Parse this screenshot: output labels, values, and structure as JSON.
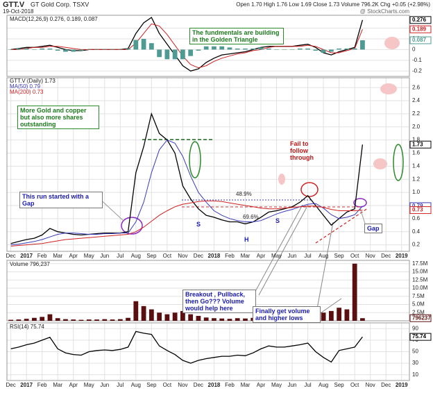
{
  "header": {
    "symbol": "GTT.V",
    "company": "GT Gold Corp. TSXV",
    "date": "19-Oct-2018",
    "quote": "Open 1.70 High 1.76 Low 1.69 Close 1.73 Volume 796.2K Chg +0.05 (+2.98%)",
    "credit": "@ StockCharts.com"
  },
  "chart_data": [
    {
      "type": "line",
      "legend": [
        "MACD(12,26,9) 0.276, 0.189, 0.087"
      ],
      "xlim": [
        -0.5,
        51
      ],
      "ylim": [
        -0.25,
        0.32
      ],
      "yticks": [
        -0.2,
        -0.1,
        0,
        0.1,
        0.2
      ],
      "grid": true,
      "annotations": [
        "The fundmentals are building in the Golden Triangle"
      ],
      "series": [
        {
          "name": "MACD",
          "color": "#000000",
          "values": [
            0.0,
            0.01,
            0.02,
            0.02,
            0.03,
            0.04,
            0.02,
            0.0,
            -0.01,
            -0.01,
            0.0,
            0.0,
            0.0,
            0.0,
            0.0,
            0.01,
            0.15,
            0.25,
            0.3,
            0.15,
            0.05,
            -0.05,
            -0.15,
            -0.2,
            -0.18,
            -0.12,
            -0.08,
            -0.05,
            -0.04,
            -0.03,
            -0.02,
            0.0,
            0.02,
            0.03,
            0.03,
            0.03,
            0.03,
            0.04,
            0.05,
            0.02,
            -0.03,
            -0.05,
            -0.02,
            0.0,
            0.02,
            0.276
          ]
        },
        {
          "name": "Signal",
          "color": "#d02020",
          "values": [
            0.0,
            0.0,
            0.01,
            0.02,
            0.02,
            0.03,
            0.03,
            0.02,
            0.01,
            0.0,
            0.0,
            0.0,
            0.0,
            0.0,
            0.0,
            0.0,
            0.06,
            0.15,
            0.24,
            0.22,
            0.14,
            0.04,
            -0.06,
            -0.14,
            -0.17,
            -0.15,
            -0.11,
            -0.08,
            -0.06,
            -0.04,
            -0.03,
            -0.01,
            0.0,
            0.02,
            0.03,
            0.03,
            0.03,
            0.03,
            0.04,
            0.03,
            0.0,
            -0.03,
            -0.03,
            -0.01,
            0.01,
            0.189
          ]
        },
        {
          "name": "Histogram",
          "type": "bar",
          "color": "#4f9a92",
          "values": [
            0,
            0.01,
            0.01,
            0,
            0.01,
            0.01,
            -0.01,
            -0.02,
            -0.02,
            -0.01,
            0,
            0,
            0,
            0,
            0,
            0.01,
            0.09,
            0.1,
            0.06,
            -0.07,
            -0.09,
            -0.09,
            -0.09,
            -0.06,
            -0.01,
            0.03,
            0.03,
            0.03,
            0.02,
            0.01,
            0.01,
            0.01,
            0.02,
            0.01,
            0,
            0,
            0,
            0.01,
            0.01,
            -0.01,
            -0.03,
            -0.02,
            0.01,
            0.01,
            0.01,
            0.087
          ]
        }
      ]
    },
    {
      "type": "line",
      "legend": [
        "GTT.V (Daily) 1.73",
        "MA(50) 0.79",
        "MA(200) 0.73"
      ],
      "xlim": [
        -0.5,
        51
      ],
      "ylim": [
        0.1,
        2.75
      ],
      "yticks": [
        0.2,
        0.4,
        0.6,
        0.8,
        {
          "value": 1,
          "label": "1.0"
        },
        1.2,
        1.4,
        1.6,
        1.8,
        {
          "value": 2,
          "label": "2.0"
        },
        2.2,
        2.4,
        2.6
      ],
      "xticks": [
        {
          "value": 0,
          "label": "Dec"
        },
        {
          "value": 2,
          "label": "2017"
        },
        {
          "value": 4,
          "label": "Feb"
        },
        {
          "value": 6,
          "label": "Mar"
        },
        {
          "value": 8,
          "label": "Apr"
        },
        {
          "value": 10,
          "label": "May"
        },
        {
          "value": 12,
          "label": "Jun"
        },
        {
          "value": 14,
          "label": "Jul"
        },
        {
          "value": 16,
          "label": "Aug"
        },
        {
          "value": 18,
          "label": "Sep"
        },
        {
          "value": 20,
          "label": "Oct"
        },
        {
          "value": 22,
          "label": "Nov"
        },
        {
          "value": 24,
          "label": "Dec"
        },
        {
          "value": 26,
          "label": "2018"
        },
        {
          "value": 28,
          "label": "Feb"
        },
        {
          "value": 30,
          "label": "Mar"
        },
        {
          "value": 32,
          "label": "Apr"
        },
        {
          "value": 34,
          "label": "May"
        },
        {
          "value": 36,
          "label": "Jun"
        },
        {
          "value": 38,
          "label": "Jul"
        },
        {
          "value": 40,
          "label": "Aug"
        },
        {
          "value": 42,
          "label": "Sep"
        },
        {
          "value": 44,
          "label": "Oct"
        },
        {
          "value": 46,
          "label": "Nov"
        },
        {
          "value": 48,
          "label": "Dec"
        },
        {
          "value": 50,
          "label": "2019"
        }
      ],
      "grid": true,
      "annotations": [
        "More Gold and copper but also more shares outstanding",
        "This run started with a Gap",
        "Fail to follow through",
        "Gap",
        "S",
        "H",
        "S",
        "48.9%",
        "69.6%"
      ],
      "series": [
        {
          "name": "GTT.V",
          "color": "#000000",
          "values": [
            0.22,
            0.25,
            0.28,
            0.3,
            0.35,
            0.45,
            0.4,
            0.38,
            0.36,
            0.35,
            0.36,
            0.37,
            0.38,
            0.38,
            0.38,
            0.4,
            1.3,
            1.7,
            2.2,
            1.9,
            1.8,
            1.6,
            1.1,
            0.9,
            0.75,
            0.65,
            0.62,
            0.58,
            0.55,
            0.55,
            0.52,
            0.55,
            0.62,
            0.7,
            0.72,
            0.75,
            0.78,
            0.85,
            0.95,
            0.8,
            0.65,
            0.5,
            0.6,
            0.7,
            0.75,
            1.73
          ]
        },
        {
          "name": "MA(50)",
          "color": "#3a3ab8",
          "values": [
            0.2,
            0.21,
            0.23,
            0.25,
            0.28,
            0.32,
            0.36,
            0.38,
            0.38,
            0.37,
            0.36,
            0.36,
            0.37,
            0.37,
            0.38,
            0.38,
            0.55,
            0.85,
            1.3,
            1.65,
            1.8,
            1.75,
            1.55,
            1.25,
            1.0,
            0.85,
            0.72,
            0.65,
            0.6,
            0.57,
            0.55,
            0.55,
            0.57,
            0.62,
            0.67,
            0.71,
            0.74,
            0.78,
            0.82,
            0.83,
            0.76,
            0.66,
            0.6,
            0.62,
            0.66,
            0.79
          ]
        },
        {
          "name": "MA(200)",
          "color": "#d02020",
          "values": [
            0.18,
            0.19,
            0.2,
            0.21,
            0.22,
            0.24,
            0.26,
            0.28,
            0.29,
            0.3,
            0.31,
            0.32,
            0.33,
            0.34,
            0.35,
            0.36,
            0.4,
            0.47,
            0.56,
            0.65,
            0.72,
            0.78,
            0.82,
            0.84,
            0.86,
            0.87,
            0.87,
            0.86,
            0.84,
            0.82,
            0.8,
            0.78,
            0.76,
            0.75,
            0.75,
            0.76,
            0.77,
            0.78,
            0.79,
            0.79,
            0.77,
            0.74,
            0.72,
            0.72,
            0.72,
            0.73
          ]
        }
      ]
    },
    {
      "type": "bar",
      "legend": [
        "Volume 796,237"
      ],
      "xlim": [
        -0.5,
        51
      ],
      "ylim": [
        0,
        18500000
      ],
      "yticks": [
        {
          "value": 2500000,
          "label": "2.5M"
        },
        {
          "value": 5000000,
          "label": "5.0M"
        },
        {
          "value": 7500000,
          "label": "7.5M"
        },
        {
          "value": 10000000,
          "label": "10.0M"
        },
        {
          "value": 12500000,
          "label": "12.5M"
        },
        {
          "value": 15000000,
          "label": "15.0M"
        },
        {
          "value": 17500000,
          "label": "17.5M"
        }
      ],
      "grid": true,
      "annotations": [
        "Breakout , Pullback, then Go??? Volume would help here",
        "Finally get volume and higher lows"
      ],
      "series": [
        {
          "name": "Volume",
          "color": "#5a1010",
          "values": [
            300000,
            400000,
            600000,
            900000,
            1200000,
            2000000,
            800000,
            500000,
            400000,
            300000,
            400000,
            400000,
            500000,
            400000,
            500000,
            900000,
            6000000,
            4500000,
            3500000,
            2500000,
            2000000,
            2500000,
            3000000,
            2000000,
            1500000,
            1000000,
            800000,
            700000,
            600000,
            800000,
            700000,
            900000,
            1500000,
            2000000,
            1500000,
            1200000,
            1800000,
            2500000,
            3500000,
            2000000,
            2500000,
            3000000,
            4000000,
            3500000,
            17500000,
            796237
          ]
        }
      ]
    },
    {
      "type": "line",
      "legend": [
        "RSI(14) 75.74"
      ],
      "xlim": [
        -0.5,
        51
      ],
      "ylim": [
        0,
        100
      ],
      "yticks": [
        10,
        30,
        50,
        70,
        90
      ],
      "xticks": [
        {
          "value": 0,
          "label": "Dec"
        },
        {
          "value": 2,
          "label": "2017"
        },
        {
          "value": 4,
          "label": "Feb"
        },
        {
          "value": 6,
          "label": "Mar"
        },
        {
          "value": 8,
          "label": "Apr"
        },
        {
          "value": 10,
          "label": "May"
        },
        {
          "value": 12,
          "label": "Jun"
        },
        {
          "value": 14,
          "label": "Jul"
        },
        {
          "value": 16,
          "label": "Aug"
        },
        {
          "value": 18,
          "label": "Sep"
        },
        {
          "value": 20,
          "label": "Oct"
        },
        {
          "value": 22,
          "label": "Nov"
        },
        {
          "value": 24,
          "label": "Dec"
        },
        {
          "value": 26,
          "label": "2018"
        },
        {
          "value": 28,
          "label": "Feb"
        },
        {
          "value": 30,
          "label": "Mar"
        },
        {
          "value": 32,
          "label": "Apr"
        },
        {
          "value": 34,
          "label": "May"
        },
        {
          "value": 36,
          "label": "Jun"
        },
        {
          "value": 38,
          "label": "Jul"
        },
        {
          "value": 40,
          "label": "Aug"
        },
        {
          "value": 42,
          "label": "Sep"
        },
        {
          "value": 44,
          "label": "Oct"
        },
        {
          "value": 46,
          "label": "Nov"
        },
        {
          "value": 48,
          "label": "Dec"
        },
        {
          "value": 50,
          "label": "2019"
        }
      ],
      "grid": true,
      "series": [
        {
          "name": "RSI(14)",
          "color": "#000000",
          "values": [
            55,
            58,
            62,
            65,
            70,
            75,
            55,
            48,
            45,
            44,
            50,
            52,
            53,
            52,
            54,
            58,
            85,
            82,
            80,
            60,
            52,
            45,
            35,
            30,
            35,
            38,
            40,
            42,
            42,
            44,
            43,
            48,
            55,
            60,
            58,
            58,
            60,
            62,
            65,
            50,
            40,
            32,
            52,
            55,
            58,
            75.74
          ]
        }
      ]
    }
  ]
}
